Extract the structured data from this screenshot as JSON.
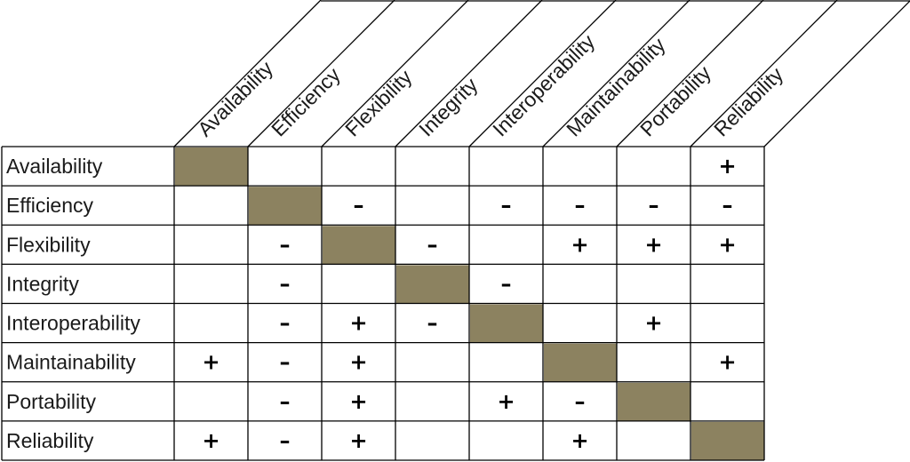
{
  "matrix": {
    "attributes": [
      "Availability",
      "Efficiency",
      "Flexibility",
      "Integrity",
      "Interoperability",
      "Maintainability",
      "Portability",
      "Reliability"
    ],
    "rows": [
      [
        "",
        "",
        "",
        "",
        "",
        "",
        "",
        "+"
      ],
      [
        "",
        "",
        "–",
        "",
        "–",
        "–",
        "–",
        "–"
      ],
      [
        "",
        "–",
        "",
        "–",
        "",
        "+",
        "+",
        "+"
      ],
      [
        "",
        "–",
        "",
        "",
        "–",
        "",
        "",
        ""
      ],
      [
        "",
        "–",
        "+",
        "–",
        "",
        "",
        "+",
        ""
      ],
      [
        "+",
        "–",
        "+",
        "",
        "",
        "",
        "",
        "+"
      ],
      [
        "",
        "–",
        "+",
        "",
        "+",
        "–",
        "",
        ""
      ],
      [
        "+",
        "–",
        "+",
        "",
        "",
        "+",
        "",
        ""
      ]
    ],
    "diagonal_color": "#8c8260"
  }
}
